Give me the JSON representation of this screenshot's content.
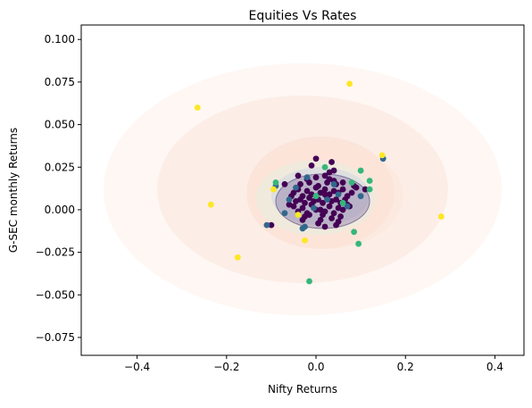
{
  "chart_data": {
    "type": "scatter",
    "title": "Equities Vs Rates",
    "xlabel": "Nifty Returns",
    "ylabel": "G-SEC monthly Returns",
    "xlim": [
      -0.525,
      0.465
    ],
    "ylim": [
      -0.0855,
      0.1085
    ],
    "xticks": [
      -0.4,
      -0.2,
      0.0,
      0.2,
      0.4
    ],
    "xtick_labels": [
      "−0.4",
      "−0.2",
      "0.0",
      "0.2",
      "0.4"
    ],
    "yticks": [
      -0.075,
      -0.05,
      -0.025,
      0.0,
      0.025,
      0.05,
      0.075,
      0.1
    ],
    "ytick_labels": [
      "−0.075",
      "−0.050",
      "−0.025",
      "0.000",
      "0.025",
      "0.050",
      "0.075",
      "0.100"
    ],
    "grid": false,
    "legend": "none",
    "colors": {
      "cluster0": "#440154",
      "cluster1": "#31688e",
      "cluster2": "#35b779",
      "cluster3": "#fde725",
      "outer_ellipse": "#fbe5dc",
      "inner_ellipse_fill": "#7b6a9e",
      "inner_ellipse_stroke": "#4b3a78"
    },
    "ellipses": [
      {
        "cx": -0.03,
        "cy": 0.012,
        "rx": 0.445,
        "ry": 0.074,
        "color": "#fdf0ea",
        "opacity": 0.55
      },
      {
        "cx": -0.03,
        "cy": 0.012,
        "rx": 0.325,
        "ry": 0.055,
        "color": "#fbe1d6",
        "opacity": 0.45
      },
      {
        "cx": 0.01,
        "cy": 0.01,
        "rx": 0.165,
        "ry": 0.033,
        "color": "#f9d8c8",
        "opacity": 0.4
      },
      {
        "cx": 0.02,
        "cy": 0.008,
        "rx": 0.175,
        "ry": 0.031,
        "color": "#fde4d6",
        "opacity": 0.45
      },
      {
        "cx": 0.0,
        "cy": 0.007,
        "rx": 0.135,
        "ry": 0.022,
        "color": "#e6efe0",
        "opacity": 0.55
      },
      {
        "cx": 0.01,
        "cy": 0.008,
        "rx": 0.11,
        "ry": 0.017,
        "color": "#cfd6e2",
        "opacity": 0.55
      },
      {
        "cx": 0.015,
        "cy": 0.005,
        "rx": 0.105,
        "ry": 0.016,
        "color": "#8e7fab",
        "opacity": 0.45,
        "stroke": "#4b3a78"
      }
    ],
    "series": [
      {
        "color": "#440154",
        "x": [
          -0.05,
          -0.04,
          -0.03,
          -0.02,
          -0.01,
          0.0,
          0.01,
          0.02,
          0.03,
          0.04,
          0.05,
          0.06,
          0.07,
          -0.045,
          -0.035,
          -0.025,
          -0.015,
          -0.005,
          0.005,
          0.015,
          0.025,
          0.035,
          0.045,
          0.055,
          0.065,
          -0.05,
          -0.03,
          -0.01,
          0.01,
          0.03,
          0.05,
          0.07,
          -0.04,
          -0.02,
          0.0,
          0.02,
          0.04,
          0.06,
          -0.035,
          -0.015,
          0.005,
          0.025,
          0.045,
          -0.025,
          0.015,
          0.035,
          0.055,
          -0.06,
          0.08,
          0.09,
          -0.055,
          0.075,
          0.0,
          0.03,
          -0.02,
          0.02,
          0.04,
          -0.04,
          0.06,
          -0.03,
          0.01,
          0.05,
          0.0,
          0.04,
          -0.01,
          0.03,
          -0.1,
          0.11,
          -0.07,
          0.085,
          0.045,
          0.02,
          -0.015,
          0.035,
          0.005,
          0.02
        ],
        "y": [
          0.01,
          0.012,
          0.008,
          0.011,
          0.009,
          0.013,
          0.01,
          0.012,
          0.009,
          0.011,
          0.01,
          0.012,
          0.008,
          0.005,
          0.006,
          0.004,
          0.007,
          0.005,
          0.006,
          0.004,
          0.007,
          0.005,
          0.006,
          0.004,
          0.006,
          0.002,
          0.001,
          0.003,
          0.0,
          0.002,
          0.001,
          0.003,
          -0.001,
          -0.002,
          0.0,
          -0.001,
          -0.002,
          0.0,
          0.015,
          0.016,
          0.014,
          0.016,
          0.015,
          -0.004,
          -0.003,
          -0.005,
          -0.004,
          0.003,
          0.01,
          0.013,
          0.008,
          0.002,
          0.019,
          0.018,
          0.018,
          0.02,
          0.017,
          0.02,
          0.016,
          -0.006,
          -0.006,
          -0.007,
          0.03,
          0.023,
          0.026,
          0.022,
          -0.009,
          0.012,
          0.015,
          0.014,
          -0.009,
          -0.01,
          -0.003,
          0.028,
          -0.008,
          0.009
        ]
      },
      {
        "color": "#31688e",
        "x": [
          0.15,
          -0.11,
          -0.07,
          -0.03,
          0.05,
          0.07,
          0.0,
          -0.06,
          -0.025,
          0.1,
          0.04,
          -0.045,
          -0.02
        ],
        "y": [
          0.03,
          -0.009,
          -0.002,
          -0.011,
          0.009,
          0.002,
          0.008,
          0.006,
          -0.01,
          0.008,
          0.015,
          0.013,
          0.019
        ],
        "extra_x": [
          -0.09,
          0.025,
          -0.005,
          0.06
        ],
        "extra_y": [
          0.014,
          0.006,
          0.001,
          0.004
        ]
      },
      {
        "color": "#35b779",
        "x": [
          -0.09,
          0.02,
          0.1,
          0.12,
          0.08,
          0.085,
          0.095,
          -0.015,
          -0.04,
          0.0,
          0.12,
          0.06
        ],
        "y": [
          0.016,
          0.025,
          0.023,
          0.017,
          0.016,
          -0.013,
          -0.02,
          -0.042,
          -0.003,
          0.008,
          0.012,
          0.004
        ]
      },
      {
        "color": "#fde725",
        "x": [
          0.075,
          -0.265,
          0.148,
          -0.235,
          0.28,
          -0.175,
          -0.025,
          -0.095,
          -0.04
        ],
        "y": [
          0.074,
          0.06,
          0.032,
          0.003,
          -0.004,
          -0.028,
          -0.018,
          0.012,
          -0.003
        ]
      }
    ]
  }
}
